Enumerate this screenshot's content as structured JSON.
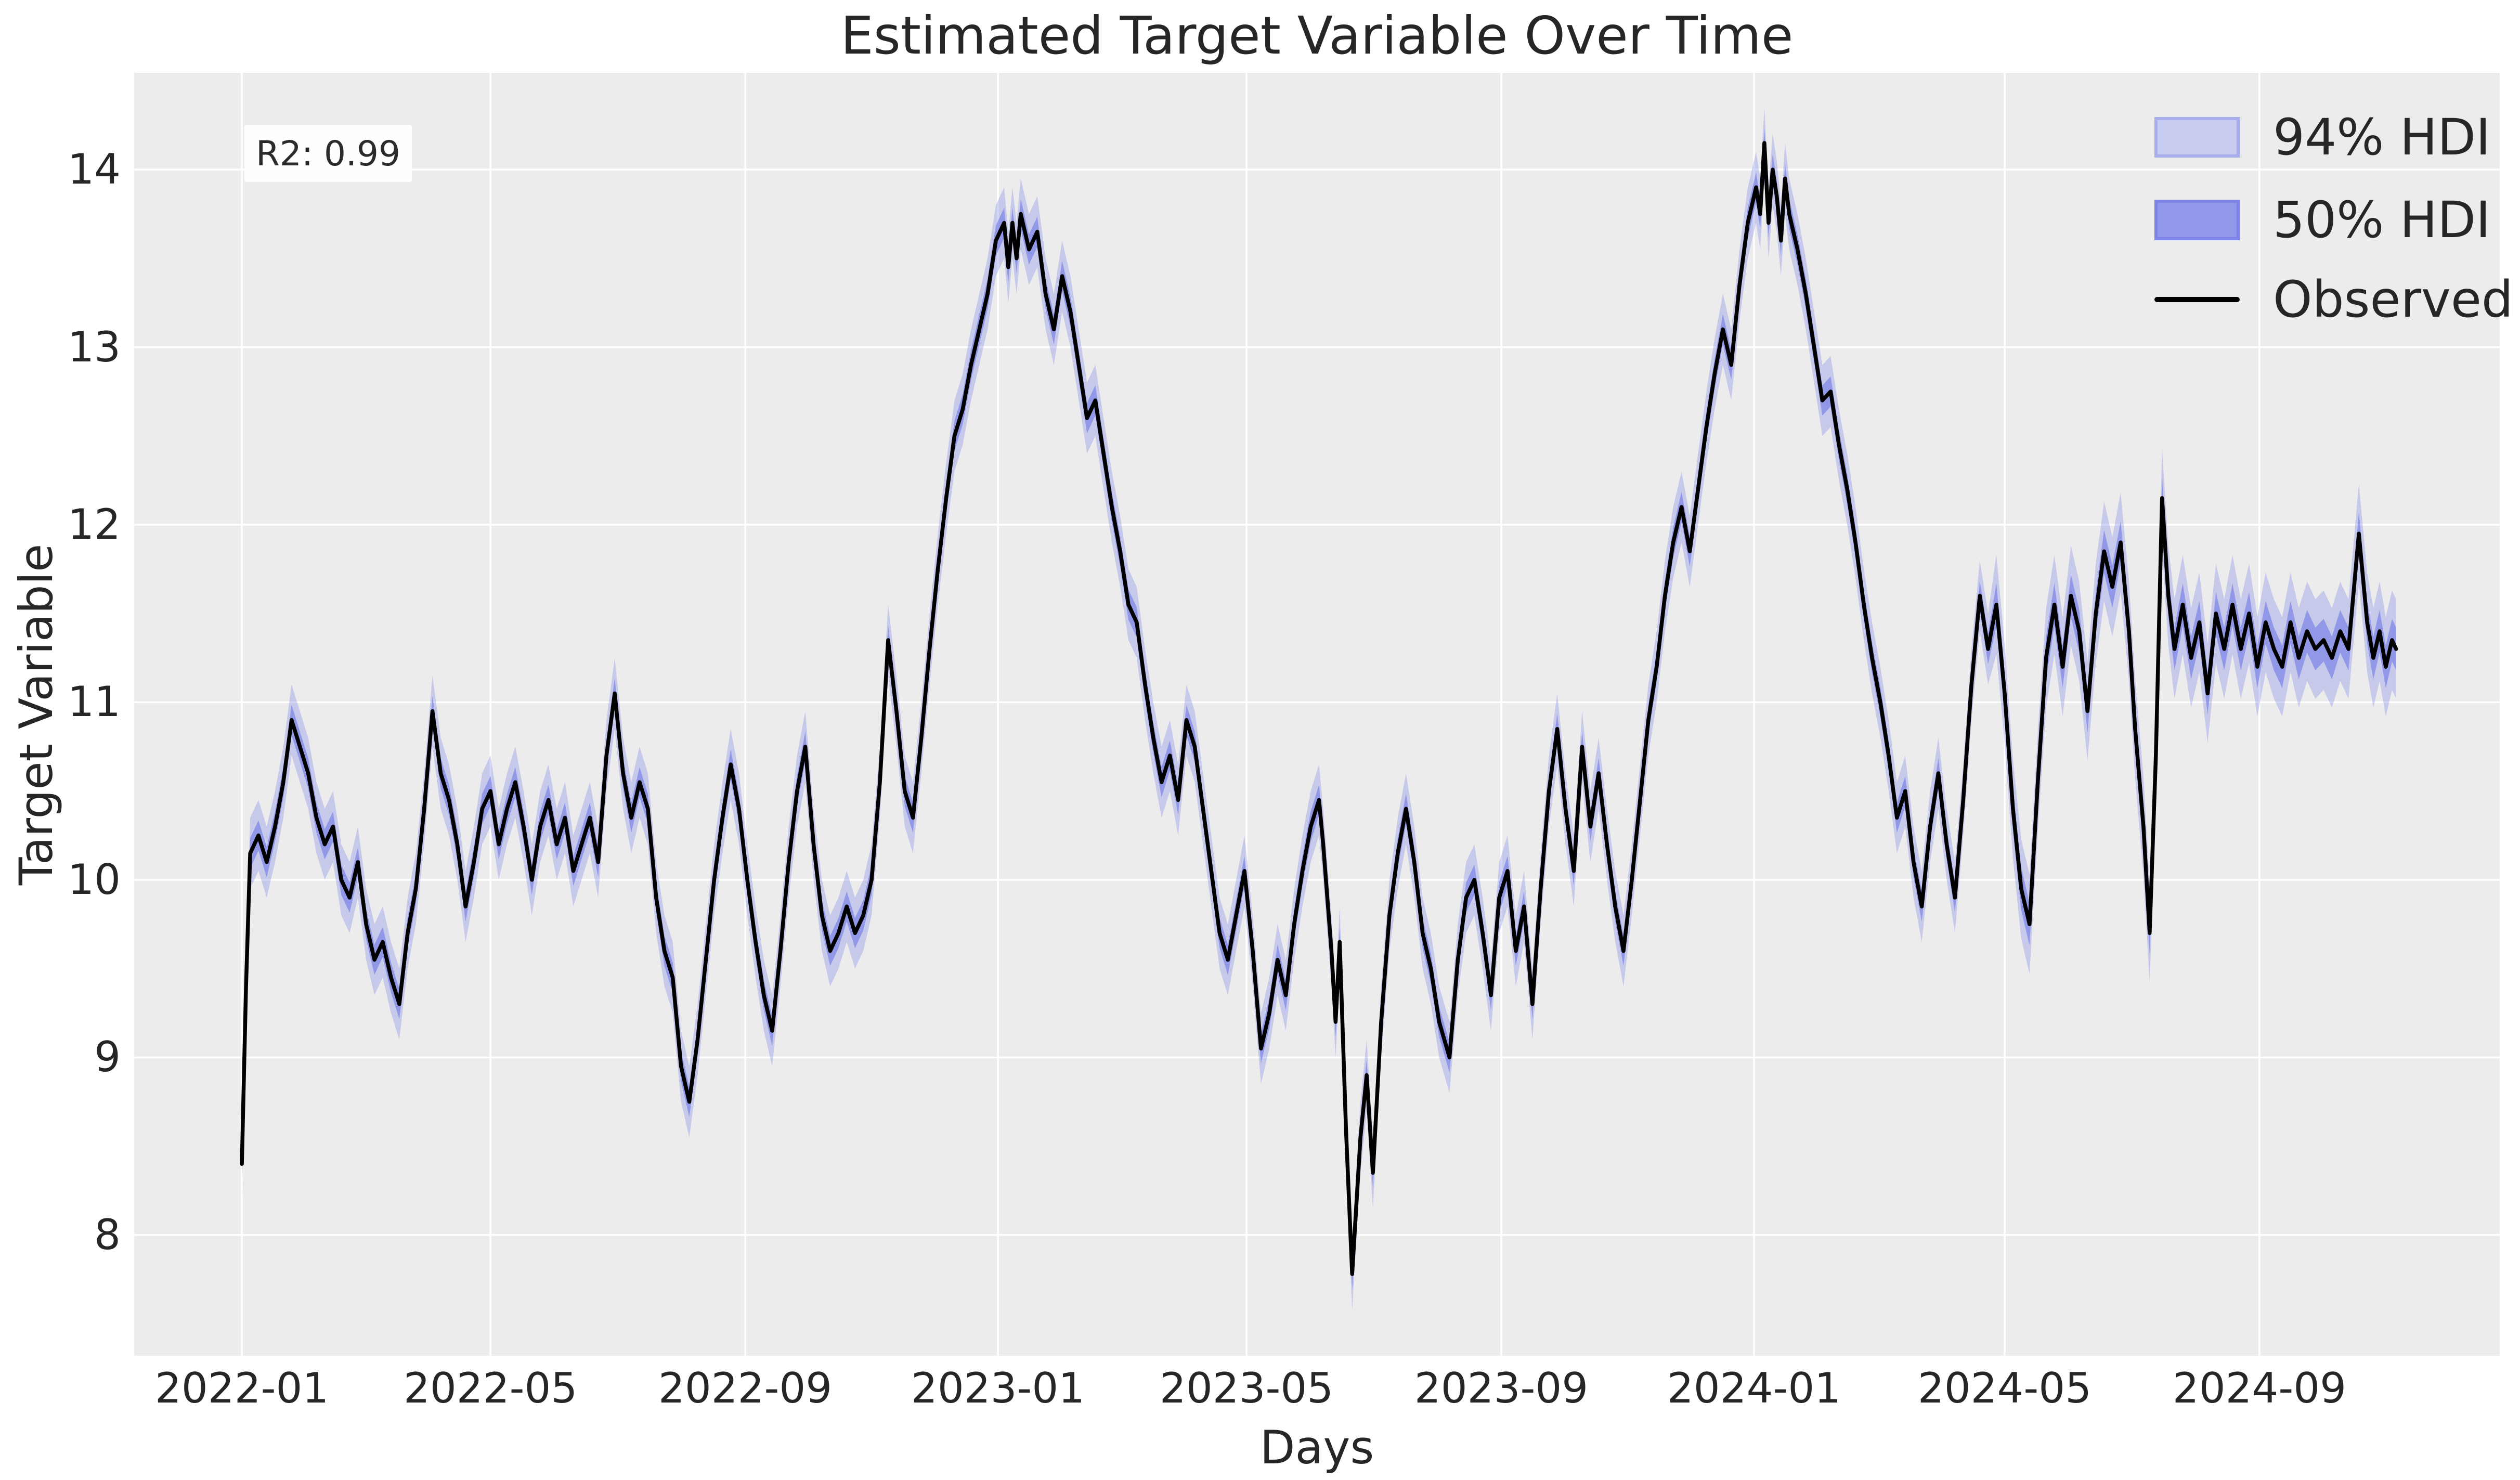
{
  "title": "Estimated Target Variable Over Time",
  "annotation": {
    "r2_label": "R2: 0.99"
  },
  "axes": {
    "xlabel": "Days",
    "ylabel": "Target Variable"
  },
  "legend": {
    "items": [
      {
        "label": "94% HDI",
        "type": "patch",
        "fill": "#c9ccf1",
        "edge": "#a9adee"
      },
      {
        "label": "50% HDI",
        "type": "patch",
        "fill": "#9298e9",
        "edge": "#7d84e6"
      },
      {
        "label": "Observed",
        "type": "line",
        "color": "#000000"
      }
    ]
  },
  "chart_data": {
    "type": "line",
    "title": "Estimated Target Variable Over Time",
    "xlabel": "Days",
    "ylabel": "Target Variable",
    "grid": true,
    "legend_position": "upper right",
    "x_tick_labels": [
      "2022-01",
      "2022-05",
      "2022-09",
      "2023-01",
      "2023-05",
      "2023-09",
      "2024-01",
      "2024-05",
      "2024-09"
    ],
    "x_ticks_days": [
      0,
      120,
      243,
      365,
      485,
      608,
      730,
      851,
      974
    ],
    "x_epoch": "2022-01-01",
    "xlim_days": [
      -52,
      1090
    ],
    "y_ticks": [
      8,
      9,
      10,
      11,
      12,
      13,
      14
    ],
    "ylim": [
      7.32,
      14.545
    ],
    "colors": {
      "plot_background": "#ececec",
      "gridline": "#ffffff",
      "observed_line": "#000000",
      "hdi_base": "#7b83e6",
      "hdi94_fill": "rgba(123,131,230,0.33)",
      "hdi50_fill": "rgba(123,131,230,0.70)",
      "text": "#262626"
    },
    "bands": {
      "hdi94_halfwidth": 0.2,
      "hdi50_halfwidth": 0.085,
      "late_start_day": 845,
      "hdi94_halfwidth_late": 0.28,
      "hdi50_halfwidth_late": 0.12
    },
    "series_name": "Observed",
    "points": [
      [
        0,
        8.4
      ],
      [
        2,
        9.4
      ],
      [
        4,
        10.15
      ],
      [
        8,
        10.25
      ],
      [
        12,
        10.1
      ],
      [
        16,
        10.3
      ],
      [
        20,
        10.55
      ],
      [
        24,
        10.9
      ],
      [
        28,
        10.75
      ],
      [
        32,
        10.6
      ],
      [
        36,
        10.35
      ],
      [
        40,
        10.2
      ],
      [
        44,
        10.3
      ],
      [
        48,
        10.0
      ],
      [
        52,
        9.9
      ],
      [
        56,
        10.1
      ],
      [
        60,
        9.75
      ],
      [
        64,
        9.55
      ],
      [
        68,
        9.65
      ],
      [
        72,
        9.45
      ],
      [
        76,
        9.3
      ],
      [
        80,
        9.7
      ],
      [
        84,
        9.95
      ],
      [
        88,
        10.4
      ],
      [
        92,
        10.95
      ],
      [
        96,
        10.6
      ],
      [
        100,
        10.45
      ],
      [
        104,
        10.2
      ],
      [
        108,
        9.85
      ],
      [
        112,
        10.1
      ],
      [
        116,
        10.4
      ],
      [
        120,
        10.5
      ],
      [
        124,
        10.2
      ],
      [
        128,
        10.4
      ],
      [
        132,
        10.55
      ],
      [
        136,
        10.3
      ],
      [
        140,
        10.0
      ],
      [
        144,
        10.3
      ],
      [
        148,
        10.45
      ],
      [
        152,
        10.2
      ],
      [
        156,
        10.35
      ],
      [
        160,
        10.05
      ],
      [
        164,
        10.2
      ],
      [
        168,
        10.35
      ],
      [
        172,
        10.1
      ],
      [
        176,
        10.7
      ],
      [
        180,
        11.05
      ],
      [
        184,
        10.6
      ],
      [
        188,
        10.35
      ],
      [
        192,
        10.55
      ],
      [
        196,
        10.4
      ],
      [
        200,
        9.9
      ],
      [
        204,
        9.6
      ],
      [
        208,
        9.45
      ],
      [
        212,
        8.95
      ],
      [
        216,
        8.75
      ],
      [
        220,
        9.1
      ],
      [
        224,
        9.55
      ],
      [
        228,
        10.0
      ],
      [
        232,
        10.35
      ],
      [
        236,
        10.65
      ],
      [
        240,
        10.4
      ],
      [
        244,
        10.0
      ],
      [
        248,
        9.65
      ],
      [
        252,
        9.35
      ],
      [
        256,
        9.15
      ],
      [
        260,
        9.6
      ],
      [
        264,
        10.1
      ],
      [
        268,
        10.5
      ],
      [
        272,
        10.75
      ],
      [
        276,
        10.2
      ],
      [
        280,
        9.8
      ],
      [
        284,
        9.6
      ],
      [
        288,
        9.7
      ],
      [
        292,
        9.85
      ],
      [
        296,
        9.7
      ],
      [
        300,
        9.8
      ],
      [
        304,
        10.0
      ],
      [
        308,
        10.55
      ],
      [
        312,
        11.35
      ],
      [
        316,
        10.95
      ],
      [
        320,
        10.5
      ],
      [
        324,
        10.35
      ],
      [
        328,
        10.8
      ],
      [
        332,
        11.3
      ],
      [
        336,
        11.75
      ],
      [
        340,
        12.15
      ],
      [
        344,
        12.5
      ],
      [
        348,
        12.65
      ],
      [
        352,
        12.9
      ],
      [
        356,
        13.1
      ],
      [
        360,
        13.3
      ],
      [
        364,
        13.6
      ],
      [
        368,
        13.7
      ],
      [
        370,
        13.45
      ],
      [
        372,
        13.7
      ],
      [
        374,
        13.5
      ],
      [
        376,
        13.75
      ],
      [
        380,
        13.55
      ],
      [
        384,
        13.65
      ],
      [
        388,
        13.3
      ],
      [
        392,
        13.1
      ],
      [
        396,
        13.4
      ],
      [
        400,
        13.2
      ],
      [
        404,
        12.9
      ],
      [
        408,
        12.6
      ],
      [
        412,
        12.7
      ],
      [
        416,
        12.4
      ],
      [
        420,
        12.1
      ],
      [
        424,
        11.85
      ],
      [
        428,
        11.55
      ],
      [
        432,
        11.45
      ],
      [
        436,
        11.1
      ],
      [
        440,
        10.8
      ],
      [
        444,
        10.55
      ],
      [
        448,
        10.7
      ],
      [
        452,
        10.45
      ],
      [
        456,
        10.9
      ],
      [
        460,
        10.75
      ],
      [
        464,
        10.4
      ],
      [
        468,
        10.05
      ],
      [
        472,
        9.7
      ],
      [
        476,
        9.55
      ],
      [
        480,
        9.8
      ],
      [
        484,
        10.05
      ],
      [
        488,
        9.6
      ],
      [
        492,
        9.05
      ],
      [
        496,
        9.25
      ],
      [
        500,
        9.55
      ],
      [
        504,
        9.35
      ],
      [
        508,
        9.75
      ],
      [
        512,
        10.05
      ],
      [
        516,
        10.3
      ],
      [
        520,
        10.45
      ],
      [
        522,
        10.2
      ],
      [
        526,
        9.6
      ],
      [
        528,
        9.2
      ],
      [
        530,
        9.65
      ],
      [
        533,
        8.6
      ],
      [
        536,
        7.78
      ],
      [
        540,
        8.55
      ],
      [
        543,
        8.9
      ],
      [
        546,
        8.35
      ],
      [
        550,
        9.2
      ],
      [
        554,
        9.8
      ],
      [
        558,
        10.15
      ],
      [
        562,
        10.4
      ],
      [
        566,
        10.1
      ],
      [
        570,
        9.7
      ],
      [
        574,
        9.5
      ],
      [
        578,
        9.2
      ],
      [
        583,
        9.0
      ],
      [
        587,
        9.55
      ],
      [
        591,
        9.9
      ],
      [
        595,
        10.0
      ],
      [
        599,
        9.7
      ],
      [
        603,
        9.35
      ],
      [
        607,
        9.9
      ],
      [
        611,
        10.05
      ],
      [
        615,
        9.6
      ],
      [
        619,
        9.85
      ],
      [
        623,
        9.3
      ],
      [
        627,
        9.95
      ],
      [
        631,
        10.5
      ],
      [
        635,
        10.85
      ],
      [
        639,
        10.4
      ],
      [
        643,
        10.05
      ],
      [
        647,
        10.75
      ],
      [
        651,
        10.3
      ],
      [
        655,
        10.6
      ],
      [
        659,
        10.2
      ],
      [
        663,
        9.85
      ],
      [
        667,
        9.6
      ],
      [
        671,
        10.0
      ],
      [
        675,
        10.45
      ],
      [
        679,
        10.9
      ],
      [
        683,
        11.2
      ],
      [
        687,
        11.6
      ],
      [
        691,
        11.9
      ],
      [
        695,
        12.1
      ],
      [
        699,
        11.85
      ],
      [
        703,
        12.2
      ],
      [
        707,
        12.55
      ],
      [
        711,
        12.85
      ],
      [
        715,
        13.1
      ],
      [
        719,
        12.9
      ],
      [
        723,
        13.35
      ],
      [
        727,
        13.7
      ],
      [
        731,
        13.9
      ],
      [
        733,
        13.75
      ],
      [
        735,
        14.15
      ],
      [
        737,
        13.7
      ],
      [
        739,
        14.0
      ],
      [
        741,
        13.85
      ],
      [
        743,
        13.6
      ],
      [
        745,
        13.95
      ],
      [
        747,
        13.75
      ],
      [
        751,
        13.55
      ],
      [
        755,
        13.3
      ],
      [
        759,
        13.0
      ],
      [
        763,
        12.7
      ],
      [
        767,
        12.75
      ],
      [
        771,
        12.45
      ],
      [
        775,
        12.2
      ],
      [
        779,
        11.9
      ],
      [
        783,
        11.55
      ],
      [
        787,
        11.25
      ],
      [
        791,
        11.0
      ],
      [
        795,
        10.7
      ],
      [
        799,
        10.35
      ],
      [
        803,
        10.5
      ],
      [
        807,
        10.1
      ],
      [
        811,
        9.85
      ],
      [
        815,
        10.3
      ],
      [
        819,
        10.6
      ],
      [
        823,
        10.2
      ],
      [
        827,
        9.9
      ],
      [
        831,
        10.45
      ],
      [
        835,
        11.1
      ],
      [
        839,
        11.6
      ],
      [
        843,
        11.3
      ],
      [
        847,
        11.55
      ],
      [
        851,
        11.05
      ],
      [
        855,
        10.4
      ],
      [
        859,
        9.95
      ],
      [
        863,
        9.75
      ],
      [
        867,
        10.55
      ],
      [
        871,
        11.25
      ],
      [
        875,
        11.55
      ],
      [
        879,
        11.2
      ],
      [
        883,
        11.6
      ],
      [
        887,
        11.4
      ],
      [
        891,
        10.95
      ],
      [
        895,
        11.5
      ],
      [
        899,
        11.85
      ],
      [
        903,
        11.65
      ],
      [
        907,
        11.9
      ],
      [
        911,
        11.4
      ],
      [
        914,
        10.85
      ],
      [
        918,
        10.3
      ],
      [
        921,
        9.7
      ],
      [
        924,
        10.7
      ],
      [
        927,
        12.15
      ],
      [
        930,
        11.6
      ],
      [
        933,
        11.3
      ],
      [
        937,
        11.55
      ],
      [
        941,
        11.25
      ],
      [
        945,
        11.45
      ],
      [
        949,
        11.05
      ],
      [
        953,
        11.5
      ],
      [
        957,
        11.3
      ],
      [
        961,
        11.55
      ],
      [
        965,
        11.3
      ],
      [
        969,
        11.5
      ],
      [
        973,
        11.2
      ],
      [
        977,
        11.45
      ],
      [
        981,
        11.3
      ],
      [
        985,
        11.2
      ],
      [
        989,
        11.45
      ],
      [
        993,
        11.25
      ],
      [
        997,
        11.4
      ],
      [
        1001,
        11.3
      ],
      [
        1005,
        11.35
      ],
      [
        1009,
        11.25
      ],
      [
        1013,
        11.4
      ],
      [
        1017,
        11.3
      ],
      [
        1022,
        11.95
      ],
      [
        1026,
        11.45
      ],
      [
        1029,
        11.25
      ],
      [
        1032,
        11.4
      ],
      [
        1035,
        11.2
      ],
      [
        1038,
        11.35
      ],
      [
        1040,
        11.3
      ]
    ]
  }
}
